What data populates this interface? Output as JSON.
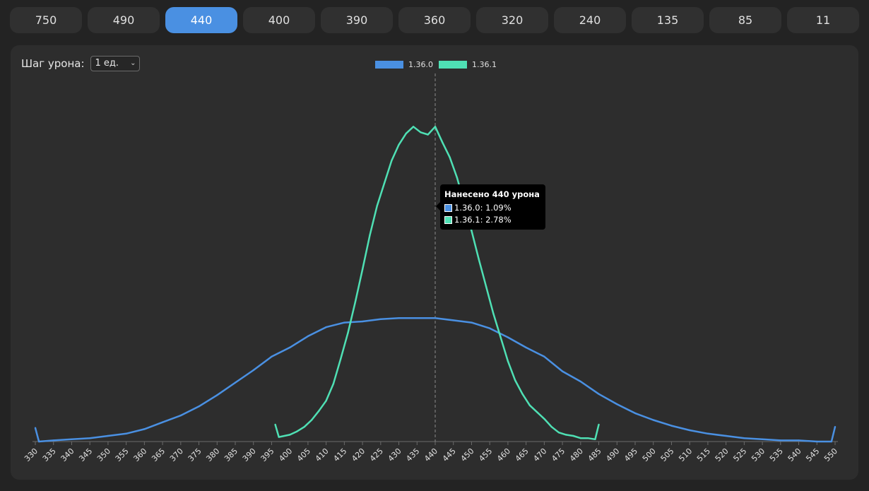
{
  "tabs": [
    {
      "label": "750",
      "active": false
    },
    {
      "label": "490",
      "active": false
    },
    {
      "label": "440",
      "active": true
    },
    {
      "label": "400",
      "active": false
    },
    {
      "label": "390",
      "active": false
    },
    {
      "label": "360",
      "active": false
    },
    {
      "label": "320",
      "active": false
    },
    {
      "label": "240",
      "active": false
    },
    {
      "label": "135",
      "active": false
    },
    {
      "label": "85",
      "active": false
    },
    {
      "label": "11",
      "active": false
    }
  ],
  "controls": {
    "step_label": "Шаг урона:",
    "step_value": "1 ед."
  },
  "tooltip": {
    "title": "Нанесено 440 урона",
    "rows": [
      {
        "label": "1.36.0: 1.09%",
        "color": "#4a90e2"
      },
      {
        "label": "1.36.1: 2.78%",
        "color": "#4fe0b4"
      }
    ]
  },
  "chart_data": {
    "type": "line",
    "title": "",
    "xlabel": "",
    "ylabel": "",
    "x_ticks": [
      330,
      335,
      340,
      345,
      350,
      355,
      360,
      365,
      370,
      375,
      380,
      385,
      390,
      395,
      400,
      405,
      410,
      415,
      420,
      425,
      430,
      435,
      440,
      445,
      450,
      455,
      460,
      465,
      470,
      475,
      480,
      485,
      490,
      495,
      500,
      505,
      510,
      515,
      520,
      525,
      530,
      535,
      540,
      545,
      550
    ],
    "xlim": [
      330,
      550
    ],
    "ylim": [
      0,
      3.0
    ],
    "grid": false,
    "legend": "top-center",
    "hover_x": 440,
    "series": [
      {
        "name": "1.36.0",
        "color": "#4a90e2",
        "x": [
          330,
          331,
          335,
          340,
          345,
          350,
          355,
          360,
          365,
          370,
          375,
          380,
          385,
          390,
          395,
          400,
          405,
          410,
          415,
          420,
          425,
          430,
          435,
          440,
          445,
          450,
          455,
          460,
          465,
          470,
          475,
          480,
          485,
          490,
          495,
          500,
          505,
          510,
          515,
          520,
          525,
          530,
          535,
          540,
          545,
          549,
          550
        ],
        "y": [
          0.12,
          0.0,
          0.01,
          0.02,
          0.03,
          0.05,
          0.07,
          0.11,
          0.17,
          0.23,
          0.31,
          0.41,
          0.52,
          0.63,
          0.75,
          0.83,
          0.93,
          1.01,
          1.05,
          1.06,
          1.08,
          1.09,
          1.09,
          1.09,
          1.07,
          1.05,
          1.0,
          0.92,
          0.83,
          0.75,
          0.62,
          0.53,
          0.42,
          0.33,
          0.25,
          0.19,
          0.14,
          0.1,
          0.07,
          0.05,
          0.03,
          0.02,
          0.01,
          0.01,
          0.0,
          0.0,
          0.13
        ]
      },
      {
        "name": "1.36.1",
        "color": "#4fe0b4",
        "x": [
          396,
          397,
          400,
          402,
          404,
          406,
          408,
          410,
          412,
          414,
          416,
          418,
          420,
          422,
          424,
          426,
          428,
          430,
          432,
          434,
          436,
          438,
          440,
          442,
          444,
          446,
          448,
          450,
          452,
          454,
          456,
          458,
          460,
          462,
          464,
          466,
          468,
          470,
          472,
          474,
          476,
          478,
          480,
          482,
          484,
          485
        ],
        "y": [
          0.15,
          0.04,
          0.06,
          0.09,
          0.13,
          0.19,
          0.27,
          0.36,
          0.51,
          0.73,
          0.96,
          1.23,
          1.52,
          1.82,
          2.08,
          2.28,
          2.48,
          2.62,
          2.72,
          2.78,
          2.73,
          2.71,
          2.78,
          2.64,
          2.51,
          2.33,
          2.1,
          1.86,
          1.61,
          1.37,
          1.13,
          0.92,
          0.71,
          0.54,
          0.42,
          0.32,
          0.26,
          0.2,
          0.13,
          0.08,
          0.06,
          0.05,
          0.03,
          0.03,
          0.02,
          0.15
        ]
      }
    ]
  }
}
